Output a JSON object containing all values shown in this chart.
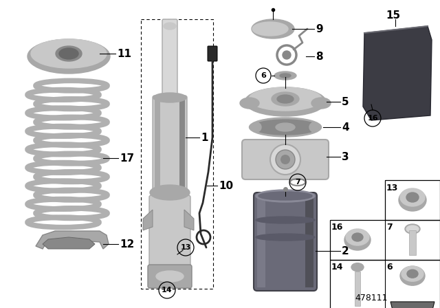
{
  "bg_color": "#ffffff",
  "diagram_id": "478111",
  "gray1": "#c8c8c8",
  "gray2": "#a8a8a8",
  "gray3": "#888888",
  "gray4": "#686868",
  "dark_gray": "#4a4a52",
  "mid_gray": "#b0b0b0",
  "light_gray": "#d8d8d8",
  "spring_color": "#b0b0b0",
  "bump_color": "#6a6a78",
  "label_fs": 11,
  "small_fs": 9
}
